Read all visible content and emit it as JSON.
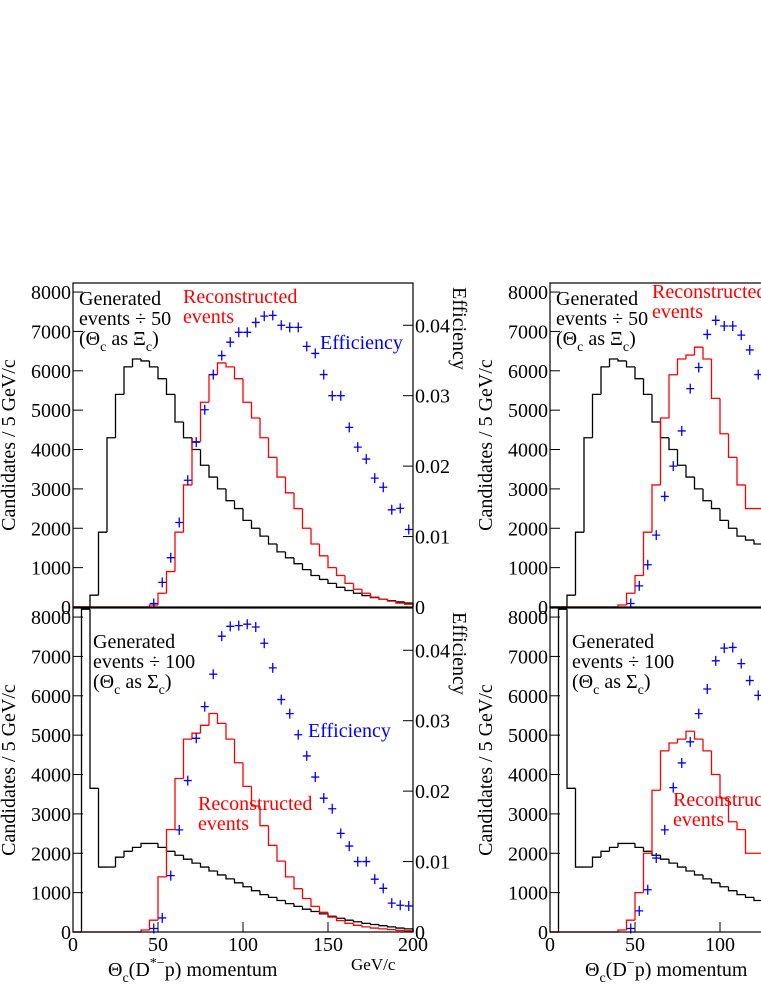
{
  "chart_data": [
    {
      "type": "histogram",
      "ylabel": "Candidates / 5 GeV/c",
      "y2label": "Efficiency",
      "bins": [
        0,
        5,
        10,
        15,
        20,
        25,
        30,
        35,
        40,
        45,
        50,
        55,
        60,
        65,
        70,
        75,
        80,
        85,
        90,
        95,
        100,
        105,
        110,
        115,
        120,
        125,
        130,
        135,
        140,
        145,
        150,
        155,
        160,
        165,
        170,
        175,
        180,
        185,
        190,
        195,
        200
      ],
      "xlim": [
        0,
        200
      ],
      "ylim": [
        0,
        8230
      ],
      "yticks": [
        0,
        1000,
        2000,
        3000,
        4000,
        5000,
        6000,
        7000,
        8000
      ],
      "y2lim": [
        0,
        0.046
      ],
      "y2ticks": [
        0,
        0.01,
        0.02,
        0.03,
        0.04
      ],
      "series": [
        {
          "color": "#000000",
          "values": [
            0,
            0,
            300,
            1900,
            4300,
            5400,
            6100,
            6300,
            6250,
            6100,
            5800,
            5400,
            4700,
            4300,
            4000,
            3600,
            3300,
            3000,
            2700,
            2500,
            2200,
            2000,
            1800,
            1600,
            1400,
            1250,
            1100,
            950,
            800,
            700,
            600,
            500,
            420,
            350,
            290,
            240,
            200,
            160,
            130,
            100
          ]
        },
        {
          "color": "#ff0000",
          "values": [
            0,
            0,
            0,
            0,
            0,
            0,
            0,
            0,
            0,
            50,
            350,
            900,
            1900,
            3100,
            4200,
            5200,
            5900,
            6200,
            6100,
            5800,
            5200,
            4800,
            4300,
            3800,
            3300,
            2900,
            2500,
            2000,
            1600,
            1300,
            1000,
            800,
            600,
            450,
            350,
            250,
            200,
            150,
            100,
            70
          ]
        },
        {
          "color": "#0000ff",
          "axis": "y2",
          "values": [
            null,
            null,
            null,
            null,
            null,
            null,
            null,
            null,
            null,
            0.0005,
            0.0035,
            0.007,
            0.012,
            0.018,
            0.0234,
            0.028,
            0.033,
            0.0357,
            0.0376,
            0.039,
            0.039,
            0.0404,
            0.0413,
            0.0414,
            0.04,
            0.0397,
            0.0397,
            0.037,
            0.036,
            0.033,
            0.03,
            0.03,
            0.0255,
            0.0227,
            0.021,
            0.0183,
            0.017,
            0.0138,
            0.014,
            0.011
          ]
        }
      ],
      "annotations": [
        {
          "color": "#000000",
          "lines": [
            [
              "Generated"
            ],
            [
              "events ÷ 50"
            ],
            [
              "(Θ",
              "c",
              " as Ξ",
              "c",
              ")"
            ]
          ]
        },
        {
          "color": "#ff0000",
          "lines": [
            [
              "Reconstructed"
            ],
            [
              "events"
            ]
          ]
        },
        {
          "color": "#0000ff",
          "lines": [
            [
              "Efficiency"
            ]
          ]
        }
      ]
    },
    {
      "type": "histogram",
      "ylabel": "Candidates / 5 GeV/c",
      "bins": [
        0,
        5,
        10,
        15,
        20,
        25,
        30,
        35,
        40,
        45,
        50,
        55,
        60,
        65,
        70,
        75,
        80,
        85,
        90,
        95,
        100,
        105,
        110,
        115,
        120,
        125
      ],
      "xlim": [
        0,
        200
      ],
      "ylim": [
        0,
        8230
      ],
      "yticks": [
        0,
        1000,
        2000,
        3000,
        4000,
        5000,
        6000,
        7000,
        8000
      ],
      "y2lim": [
        0,
        0.046
      ],
      "series": [
        {
          "color": "#000000",
          "values": [
            0,
            0,
            300,
            1900,
            4300,
            5400,
            6100,
            6300,
            6250,
            6100,
            5800,
            5400,
            4700,
            4300,
            4000,
            3600,
            3300,
            3000,
            2700,
            2500,
            2200,
            2000,
            1800,
            1700,
            1600
          ]
        },
        {
          "color": "#ff0000",
          "values": [
            0,
            0,
            0,
            0,
            0,
            0,
            0,
            0,
            50,
            350,
            800,
            1900,
            3100,
            4800,
            5900,
            6300,
            6400,
            6600,
            6300,
            5300,
            4400,
            3800,
            3100,
            2500,
            2500
          ]
        },
        {
          "color": "#0000ff",
          "axis": "y2",
          "values": [
            null,
            null,
            null,
            null,
            null,
            null,
            null,
            null,
            null,
            0.0005,
            0.003,
            0.006,
            0.0102,
            0.0157,
            0.02,
            0.025,
            0.031,
            0.034,
            0.0387,
            0.0407,
            0.0399,
            0.0399,
            0.0386,
            0.0365,
            0.033
          ]
        }
      ],
      "annotations": [
        {
          "color": "#000000",
          "lines": [
            [
              "Generated"
            ],
            [
              "events ÷ 50"
            ],
            [
              "(Θ",
              "c",
              " as Ξ",
              "c",
              ")"
            ]
          ]
        },
        {
          "color": "#ff0000",
          "lines": [
            [
              "Reconstructed"
            ],
            [
              "events"
            ]
          ]
        }
      ]
    },
    {
      "type": "histogram",
      "ylabel": "Candidates / 5 GeV/c",
      "y2label": "Efficiency",
      "xlabel": [
        "Θ",
        "c",
        "(D",
        "*−",
        "p) momentum"
      ],
      "xunit": "GeV/c",
      "bins": [
        0,
        5,
        10,
        15,
        20,
        25,
        30,
        35,
        40,
        45,
        50,
        55,
        60,
        65,
        70,
        75,
        80,
        85,
        90,
        95,
        100,
        105,
        110,
        115,
        120,
        125,
        130,
        135,
        140,
        145,
        150,
        155,
        160,
        165,
        170,
        175,
        180,
        185,
        190,
        195,
        200
      ],
      "xlim": [
        0,
        200
      ],
      "xticks": [
        0,
        50,
        100,
        150,
        200
      ],
      "ylim": [
        0,
        8230
      ],
      "yticks": [
        0,
        1000,
        2000,
        3000,
        4000,
        5000,
        6000,
        7000,
        8000
      ],
      "y2lim": [
        0,
        0.046
      ],
      "y2ticks": [
        0,
        0.01,
        0.02,
        0.03,
        0.04
      ],
      "series": [
        {
          "color": "#000000",
          "values": [
            0,
            8200,
            3650,
            1650,
            1650,
            1900,
            2050,
            2150,
            2250,
            2250,
            2150,
            2050,
            1950,
            1850,
            1750,
            1650,
            1550,
            1450,
            1350,
            1250,
            1150,
            1050,
            950,
            880,
            800,
            720,
            650,
            580,
            520,
            460,
            400,
            350,
            300,
            260,
            220,
            190,
            160,
            130,
            100,
            80
          ]
        },
        {
          "color": "#ff0000",
          "values": [
            0,
            0,
            0,
            0,
            0,
            0,
            0,
            0,
            50,
            300,
            1400,
            2600,
            3900,
            4900,
            5050,
            5250,
            5550,
            5300,
            4900,
            4300,
            3700,
            3200,
            2700,
            2200,
            1800,
            1400,
            1100,
            850,
            650,
            500,
            380,
            290,
            220,
            170,
            130,
            100,
            80,
            60,
            40,
            30
          ]
        },
        {
          "color": "#0000ff",
          "axis": "y2",
          "values": [
            null,
            null,
            null,
            null,
            null,
            null,
            null,
            null,
            null,
            0.0005,
            0.002,
            0.008,
            0.0145,
            0.0215,
            0.0275,
            0.032,
            0.0366,
            0.042,
            0.0434,
            0.0435,
            0.0437,
            0.0433,
            0.041,
            0.0375,
            0.033,
            0.031,
            0.028,
            0.025,
            0.022,
            0.019,
            0.0175,
            0.014,
            0.0122,
            0.01,
            0.01,
            0.0075,
            0.0062,
            0.0041,
            0.0038,
            0.0037
          ]
        }
      ],
      "annotations": [
        {
          "color": "#000000",
          "lines": [
            [
              "Generated"
            ],
            [
              "events ÷ 100"
            ],
            [
              "(Θ",
              "c",
              " as Σ",
              "c",
              ")"
            ]
          ]
        },
        {
          "color": "#ff0000",
          "lines": [
            [
              "Reconstructed"
            ],
            [
              "events"
            ]
          ]
        },
        {
          "color": "#0000ff",
          "lines": [
            [
              "Efficiency"
            ]
          ]
        }
      ]
    },
    {
      "type": "histogram",
      "ylabel": "Candidates / 5 GeV/c",
      "xlabel": [
        "Θ",
        "c",
        "(D",
        "−",
        "p) momentum"
      ],
      "bins": [
        0,
        5,
        10,
        15,
        20,
        25,
        30,
        35,
        40,
        45,
        50,
        55,
        60,
        65,
        70,
        75,
        80,
        85,
        90,
        95,
        100,
        105,
        110,
        115,
        120,
        125
      ],
      "xlim": [
        0,
        200
      ],
      "xticks": [
        0,
        50,
        100
      ],
      "ylim": [
        0,
        8230
      ],
      "yticks": [
        0,
        1000,
        2000,
        3000,
        4000,
        5000,
        6000,
        7000,
        8000
      ],
      "y2lim": [
        0,
        0.046
      ],
      "series": [
        {
          "color": "#000000",
          "values": [
            0,
            8200,
            3650,
            1650,
            1650,
            1900,
            2050,
            2150,
            2250,
            2250,
            2150,
            2050,
            1950,
            1850,
            1750,
            1650,
            1550,
            1450,
            1350,
            1250,
            1150,
            1050,
            950,
            880,
            800
          ]
        },
        {
          "color": "#ff0000",
          "values": [
            0,
            0,
            0,
            0,
            0,
            0,
            0,
            0,
            50,
            300,
            1000,
            2000,
            3600,
            4600,
            4800,
            4900,
            5100,
            4900,
            4600,
            4000,
            3400,
            2800,
            2600,
            2000,
            2000
          ]
        },
        {
          "color": "#0000ff",
          "axis": "y2",
          "values": [
            null,
            null,
            null,
            null,
            null,
            null,
            null,
            null,
            null,
            0.0005,
            0.003,
            0.006,
            0.0105,
            0.0145,
            0.0205,
            0.024,
            0.027,
            0.031,
            0.0345,
            0.0385,
            0.0403,
            0.0404,
            0.0381,
            0.0357,
            0.0336
          ]
        }
      ],
      "annotations": [
        {
          "color": "#000000",
          "lines": [
            [
              "Generated"
            ],
            [
              "events ÷ 100"
            ],
            [
              "(Θ",
              "c",
              " as Σ",
              "c",
              ")"
            ]
          ]
        },
        {
          "color": "#ff0000",
          "lines": [
            [
              "Reconstructed"
            ],
            [
              "events"
            ]
          ]
        }
      ]
    }
  ]
}
